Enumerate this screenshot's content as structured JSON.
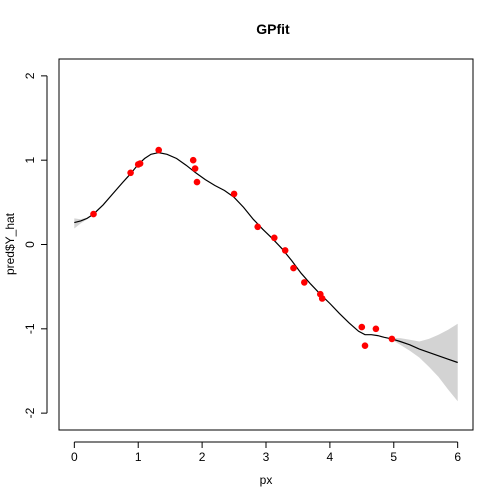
{
  "chart_data": {
    "type": "scatter",
    "title": "GPfit",
    "xlabel": "px",
    "ylabel": "pred$Y_hat",
    "xlim": [
      -0.24,
      6.24
    ],
    "ylim": [
      -2.2,
      2.2
    ],
    "xticks": [
      0,
      1,
      2,
      3,
      4,
      5,
      6
    ],
    "xtick_labels": [
      "0",
      "1",
      "2",
      "3",
      "4",
      "5",
      "6"
    ],
    "yticks": [
      -2,
      -1,
      0,
      1,
      2
    ],
    "ytick_labels": [
      "-2",
      "-1",
      "0",
      "1",
      "2"
    ],
    "grid": false,
    "colors": {
      "points": "#ff0000",
      "fit": "#000000",
      "band": "#d3d3d3"
    },
    "points": {
      "x": [
        0.3,
        0.88,
        1.0,
        1.03,
        1.32,
        1.86,
        1.89,
        1.92,
        2.5,
        2.87,
        3.13,
        3.3,
        3.43,
        3.6,
        3.85,
        3.88,
        4.5,
        4.55,
        4.72,
        4.97
      ],
      "y": [
        0.36,
        0.85,
        0.95,
        0.96,
        1.12,
        1.0,
        0.9,
        0.74,
        0.6,
        0.21,
        0.08,
        -0.07,
        -0.28,
        -0.45,
        -0.59,
        -0.64,
        -0.98,
        -1.2,
        -1.0,
        -1.12
      ]
    },
    "fit": {
      "x": [
        0.0,
        0.1,
        0.2,
        0.3,
        0.45,
        0.6,
        0.75,
        0.88,
        1.0,
        1.1,
        1.2,
        1.32,
        1.45,
        1.6,
        1.75,
        1.9,
        2.05,
        2.2,
        2.35,
        2.5,
        2.65,
        2.8,
        2.95,
        3.1,
        3.25,
        3.4,
        3.55,
        3.7,
        3.85,
        4.0,
        4.15,
        4.3,
        4.45,
        4.55,
        4.65,
        4.75,
        4.85,
        4.97,
        5.1,
        5.25,
        5.4,
        5.55,
        5.7,
        5.85,
        6.0
      ],
      "y": [
        0.26,
        0.28,
        0.31,
        0.36,
        0.47,
        0.6,
        0.73,
        0.84,
        0.95,
        1.02,
        1.07,
        1.09,
        1.07,
        1.02,
        0.94,
        0.85,
        0.77,
        0.7,
        0.64,
        0.56,
        0.44,
        0.3,
        0.18,
        0.07,
        -0.05,
        -0.19,
        -0.34,
        -0.47,
        -0.59,
        -0.7,
        -0.82,
        -0.93,
        -1.03,
        -1.07,
        -1.07,
        -1.08,
        -1.1,
        -1.12,
        -1.15,
        -1.19,
        -1.24,
        -1.28,
        -1.32,
        -1.36,
        -1.4
      ]
    },
    "band": {
      "x": [
        0.0,
        0.1,
        0.2,
        0.3,
        4.97,
        5.1,
        5.25,
        5.4,
        5.55,
        5.7,
        5.85,
        6.0
      ],
      "upper": [
        0.31,
        0.3,
        0.32,
        0.36,
        -1.11,
        -1.11,
        -1.13,
        -1.15,
        -1.12,
        -1.07,
        -1.01,
        -0.94
      ],
      "lower": [
        0.19,
        0.25,
        0.3,
        0.36,
        -1.13,
        -1.19,
        -1.26,
        -1.34,
        -1.45,
        -1.57,
        -1.72,
        -1.86
      ]
    }
  }
}
